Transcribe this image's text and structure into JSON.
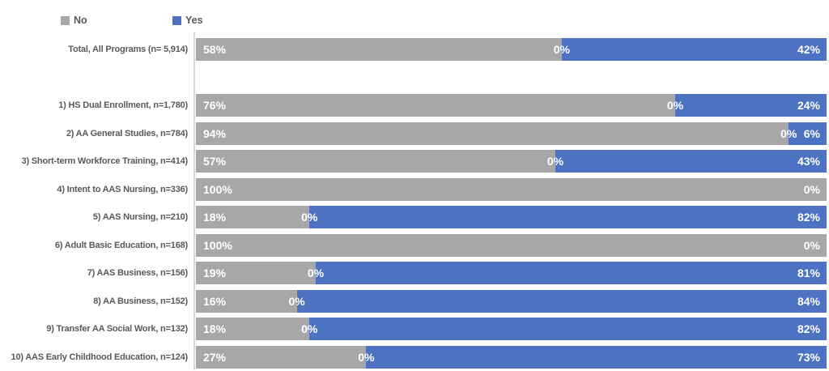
{
  "colors": {
    "no_series": "#a7a7a7",
    "yes_series": "#4d72c2",
    "axis_line": "#d9d9d9",
    "category_text": "#595959",
    "value_text": "#ffffff"
  },
  "legend": {
    "items": [
      {
        "label": "No",
        "color": "#a7a7a7"
      },
      {
        "label": "Yes",
        "color": "#4d72c2"
      }
    ]
  },
  "chart_data": {
    "type": "bar",
    "orientation": "horizontal",
    "stacked": true,
    "xlim": [
      0,
      100
    ],
    "unit": "percent",
    "gridlines": false,
    "legend_position": "top-left",
    "series_names": [
      "No",
      "Yes"
    ],
    "mid_zero_label_note": "a 0% data label is shown at the No/Yes boundary of each bar",
    "rows": [
      {
        "category": "Total, All Programs (n= 5,914)",
        "no_pct": 58,
        "no_text": "58%",
        "mid_text": "0%",
        "yes_pct": 42,
        "yes_text": "42%"
      },
      {
        "blank": true
      },
      {
        "category": "1) HS Dual Enrollment, n=1,780)",
        "no_pct": 76,
        "no_text": "76%",
        "mid_text": "0%",
        "yes_pct": 24,
        "yes_text": "24%"
      },
      {
        "category": "2) AA General Studies, n=784)",
        "no_pct": 94,
        "no_text": "94%",
        "mid_text": "0%",
        "yes_pct": 6,
        "yes_text": "6%"
      },
      {
        "category": "3) Short-term Workforce Training, n=414)",
        "no_pct": 57,
        "no_text": "57%",
        "mid_text": "0%",
        "yes_pct": 43,
        "yes_text": "43%"
      },
      {
        "category": "4) Intent to AAS Nursing, n=336)",
        "no_pct": 100,
        "no_text": "100%",
        "mid_text": null,
        "yes_pct": 0,
        "yes_text": "0%"
      },
      {
        "category": "5) AAS Nursing, n=210)",
        "no_pct": 18,
        "no_text": "18%",
        "mid_text": "0%",
        "yes_pct": 82,
        "yes_text": "82%"
      },
      {
        "category": "6) Adult Basic Education, n=168)",
        "no_pct": 100,
        "no_text": "100%",
        "mid_text": null,
        "yes_pct": 0,
        "yes_text": "0%"
      },
      {
        "category": "7) AAS Business, n=156)",
        "no_pct": 19,
        "no_text": "19%",
        "mid_text": "0%",
        "yes_pct": 81,
        "yes_text": "81%"
      },
      {
        "category": "8) AA Business, n=152)",
        "no_pct": 16,
        "no_text": "16%",
        "mid_text": "0%",
        "yes_pct": 84,
        "yes_text": "84%"
      },
      {
        "category": "9) Transfer AA Social Work, n=132)",
        "no_pct": 18,
        "no_text": "18%",
        "mid_text": "0%",
        "yes_pct": 82,
        "yes_text": "82%"
      },
      {
        "category": "10) AAS Early Childhood Education, n=124)",
        "no_pct": 27,
        "no_text": "27%",
        "mid_text": "0%",
        "yes_pct": 73,
        "yes_text": "73%"
      }
    ]
  }
}
